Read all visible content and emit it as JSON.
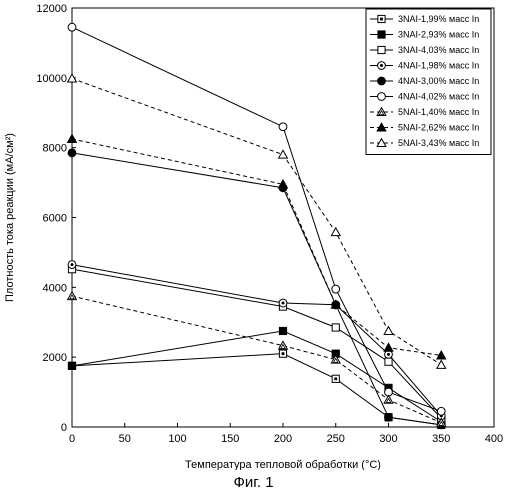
{
  "chart_data": {
    "type": "line",
    "xlabel": "Температура тепловой обработки (°C)",
    "ylabel": "Плотность тока реакции (мА/см²)",
    "xlim": [
      0,
      400
    ],
    "ylim": [
      0,
      12000
    ],
    "xticks": [
      0,
      50,
      100,
      150,
      200,
      250,
      300,
      350,
      400
    ],
    "yticks": [
      0,
      2000,
      4000,
      6000,
      8000,
      10000,
      12000
    ],
    "grid": false,
    "legend_position": "top-right",
    "x": [
      0,
      200,
      250,
      300,
      350
    ],
    "series": [
      {
        "name": "3NAI-1,99% масс In",
        "values": [
          1750,
          2100,
          1380,
          280,
          60
        ],
        "marker": "square-dot",
        "dash": "solid"
      },
      {
        "name": "3NAI-2,93% масс In",
        "values": [
          1750,
          2750,
          2100,
          1120,
          150
        ],
        "marker": "square-filled",
        "dash": "solid"
      },
      {
        "name": "3NAI-4,03% масс In",
        "values": [
          4520,
          3450,
          2850,
          1870,
          250
        ],
        "marker": "square-open",
        "dash": "solid"
      },
      {
        "name": "4NAI-1,98% масс In",
        "values": [
          4650,
          3550,
          3500,
          2080,
          320
        ],
        "marker": "circle-dot",
        "dash": "solid"
      },
      {
        "name": "4NAI-3,00% масс In",
        "values": [
          7850,
          6850,
          3500,
          280,
          60
        ],
        "marker": "circle-filled",
        "dash": "solid"
      },
      {
        "name": "4NAI-4,02% масс In",
        "values": [
          11450,
          8600,
          3950,
          1000,
          450
        ],
        "marker": "circle-open",
        "dash": "solid"
      },
      {
        "name": "5NAI-1,40% масс In",
        "values": [
          3750,
          2330,
          1930,
          780,
          120
        ],
        "marker": "triangle-dot",
        "dash": "dashed"
      },
      {
        "name": "5NAI-2,62% масс In",
        "values": [
          8250,
          6950,
          3500,
          2270,
          2050
        ],
        "marker": "triangle-filled",
        "dash": "dashed"
      },
      {
        "name": "5NAI-3,43% масс In",
        "values": [
          9980,
          7800,
          5580,
          2750,
          1780
        ],
        "marker": "triangle-open",
        "dash": "dashed"
      }
    ]
  },
  "caption": "Фиг. 1"
}
